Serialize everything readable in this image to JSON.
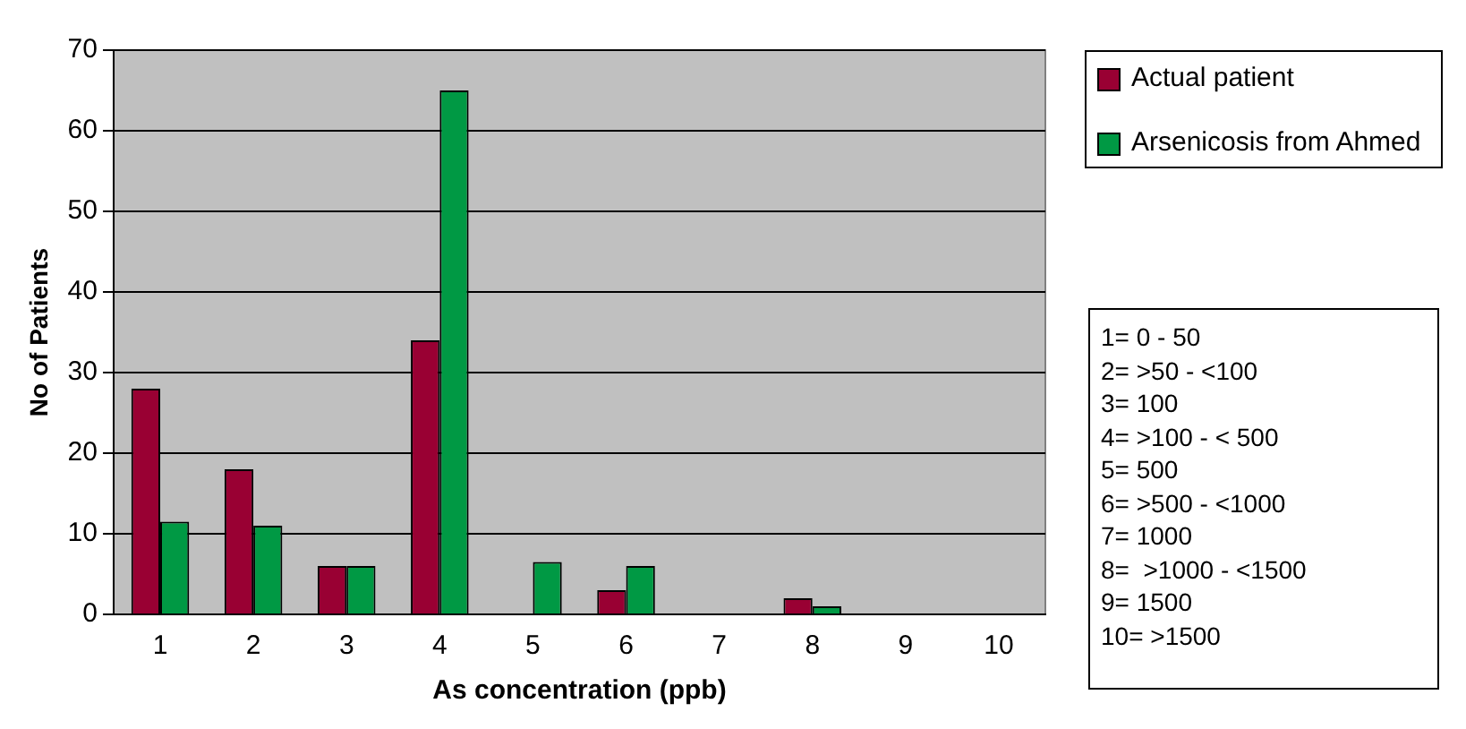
{
  "chart_data": {
    "type": "bar",
    "xlabel": "As concentration (ppb)",
    "ylabel": "No of Patients",
    "categories": [
      "1",
      "2",
      "3",
      "4",
      "5",
      "6",
      "7",
      "8",
      "9",
      "10"
    ],
    "series": [
      {
        "name": "Actual patient",
        "color": "#990033",
        "values": [
          28,
          18,
          6,
          34,
          0,
          3,
          0,
          2,
          0,
          0
        ]
      },
      {
        "name": "Arsenicosis from Ahmed",
        "color": "#009944",
        "values": [
          11.5,
          11,
          6,
          65,
          6.5,
          6,
          0,
          1,
          0,
          0
        ]
      }
    ],
    "ylim": [
      0,
      70
    ],
    "yticks": [
      0,
      10,
      20,
      30,
      40,
      50,
      60,
      70
    ],
    "grid": "y",
    "legend": "top right",
    "annotations": [
      "1= 0 - 50",
      "2= >50 - <100",
      "3= 100",
      "4= >100 - < 500",
      "5= 500",
      "6= >500 - <1000",
      "7= 1000",
      "8=  >1000 - <1500",
      "9= 1500",
      "10= >1500"
    ]
  }
}
